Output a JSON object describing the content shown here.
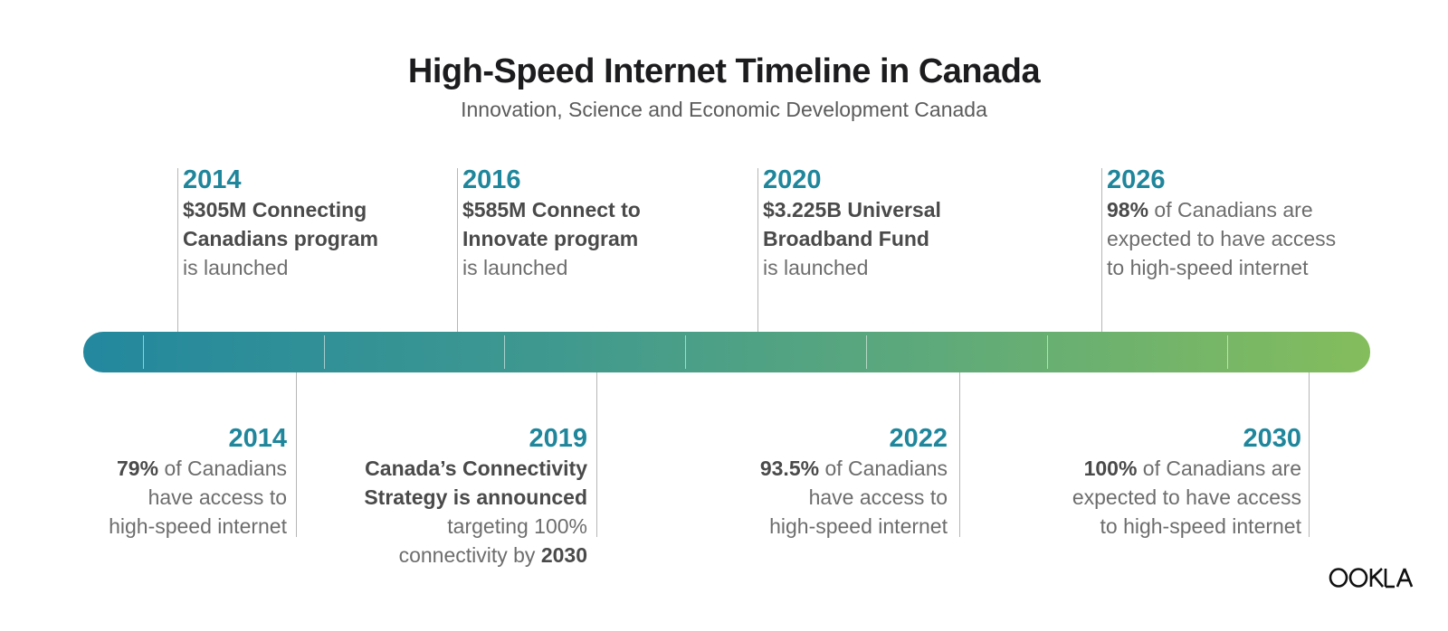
{
  "header": {
    "title": "High-Speed Internet Timeline in Canada",
    "subtitle": "Innovation, Science and Economic Development Canada"
  },
  "colors": {
    "accent_year": "#1f869b",
    "bar_start": "#23889e",
    "bar_end": "#84bd5c"
  },
  "events_top": [
    {
      "year": "2014",
      "bold_1": "$305M Connecting",
      "bold_2": "Canadians program",
      "text_3": "is launched"
    },
    {
      "year": "2016",
      "bold_1": "$585M Connect to",
      "bold_2": "Innovate program",
      "text_3": "is launched"
    },
    {
      "year": "2020",
      "bold_1": "$3.225B Universal",
      "bold_2": "Broadband Fund",
      "text_3": "is launched"
    },
    {
      "year": "2026",
      "bold_1": "98%",
      "text_1": " of Canadians are",
      "text_2": "expected to have access",
      "text_3": "to high-speed internet"
    }
  ],
  "events_bottom": [
    {
      "year": "2014",
      "bold_1": "79%",
      "text_1": " of Canadians",
      "text_2": "have access to",
      "text_3": "high-speed internet"
    },
    {
      "year": "2019",
      "bold_1": "Canada’s Connectivity",
      "bold_2": "Strategy is announced",
      "text_3": "targeting 100%",
      "text_4": "connectivity by ",
      "bold_4": "2030"
    },
    {
      "year": "2022",
      "bold_1": "93.5%",
      "text_1": " of Canadians",
      "text_2": "have access to",
      "text_3": "high-speed internet"
    },
    {
      "year": "2030",
      "bold_1": "100%",
      "text_1": " of Canadians are",
      "text_2": "expected to have access",
      "text_3": "to high-speed internet"
    }
  ],
  "logo": {
    "text": "OOKLA"
  }
}
